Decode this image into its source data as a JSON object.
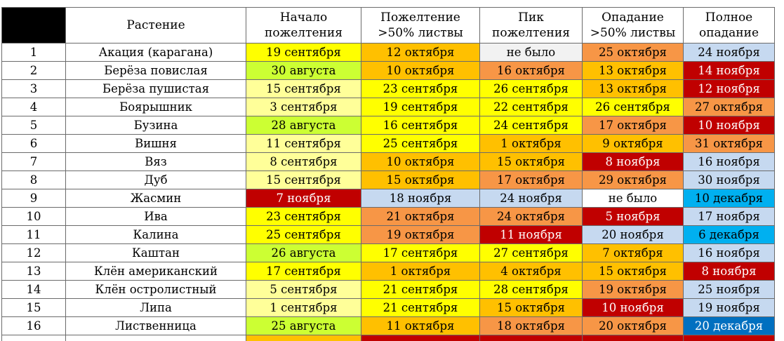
{
  "colors": {
    "light_yellow": "#ffff99",
    "yellow": "#ffff00",
    "yellow_green": "#ccff33",
    "light_orange": "#ffc000",
    "orange": "#f79646",
    "dark_red": "#c00000",
    "light_blue": "#c6d9f0",
    "sky_blue": "#00b0f0",
    "blue": "#0070c0",
    "light_gray": "#f2f2f2",
    "white": "#ffffff"
  },
  "table": {
    "headers": [
      {
        "lines": [
          ""
        ],
        "key": "corner"
      },
      {
        "lines": [
          "Растение"
        ],
        "key": "plant"
      },
      {
        "lines": [
          "Начало",
          "пожелтения"
        ],
        "key": "start"
      },
      {
        "lines": [
          "Пожелтение",
          ">50% листвы"
        ],
        "key": "over50"
      },
      {
        "lines": [
          "Пик",
          "пожелтения"
        ],
        "key": "peak"
      },
      {
        "lines": [
          "Опадание",
          ">50% листвы"
        ],
        "key": "fall50"
      },
      {
        "lines": [
          "Полное",
          "опадание"
        ],
        "key": "full"
      }
    ],
    "rows": [
      {
        "num": "1",
        "plant": "Акация (карагана)",
        "cells": [
          {
            "text": "19 сентября",
            "color": "yellow"
          },
          {
            "text": "12 октября",
            "color": "light_orange"
          },
          {
            "text": "не было",
            "color": "light_gray"
          },
          {
            "text": "25 октября",
            "color": "orange"
          },
          {
            "text": "24 ноября",
            "color": "light_blue"
          }
        ]
      },
      {
        "num": "2",
        "plant": "Берёза повислая",
        "cells": [
          {
            "text": "30 августа",
            "color": "yellow_green"
          },
          {
            "text": "10 октября",
            "color": "light_orange"
          },
          {
            "text": "16 октября",
            "color": "orange"
          },
          {
            "text": "13 октября",
            "color": "light_orange"
          },
          {
            "text": "14 ноября",
            "color": "dark_red"
          }
        ]
      },
      {
        "num": "3",
        "plant": "Берёза пушистая",
        "cells": [
          {
            "text": "15 сентября",
            "color": "light_yellow"
          },
          {
            "text": "23 сентября",
            "color": "yellow"
          },
          {
            "text": "26 сентября",
            "color": "yellow"
          },
          {
            "text": "13 октября",
            "color": "light_orange"
          },
          {
            "text": "12 ноября",
            "color": "dark_red"
          }
        ]
      },
      {
        "num": "4",
        "plant": "Боярышник",
        "cells": [
          {
            "text": "3 сентября",
            "color": "light_yellow"
          },
          {
            "text": "19 сентября",
            "color": "yellow"
          },
          {
            "text": "22 сентября",
            "color": "yellow"
          },
          {
            "text": "26 сентября",
            "color": "yellow"
          },
          {
            "text": "27 октября",
            "color": "orange"
          }
        ]
      },
      {
        "num": "5",
        "plant": "Бузина",
        "cells": [
          {
            "text": "28 августа",
            "color": "yellow_green"
          },
          {
            "text": "16 сентября",
            "color": "yellow"
          },
          {
            "text": "24 сентября",
            "color": "yellow"
          },
          {
            "text": "17 октября",
            "color": "orange"
          },
          {
            "text": "10 ноября",
            "color": "dark_red"
          }
        ]
      },
      {
        "num": "6",
        "plant": "Вишня",
        "cells": [
          {
            "text": "11 сентября",
            "color": "light_yellow"
          },
          {
            "text": "25 сентября",
            "color": "yellow"
          },
          {
            "text": "1 октября",
            "color": "light_orange"
          },
          {
            "text": "9 октября",
            "color": "light_orange"
          },
          {
            "text": "31 октября",
            "color": "orange"
          }
        ]
      },
      {
        "num": "7",
        "plant": "Вяз",
        "cells": [
          {
            "text": "8 сентября",
            "color": "light_yellow"
          },
          {
            "text": "10 октября",
            "color": "light_orange"
          },
          {
            "text": "15 октября",
            "color": "light_orange"
          },
          {
            "text": "8 ноября",
            "color": "dark_red"
          },
          {
            "text": "16 ноября",
            "color": "light_blue"
          }
        ]
      },
      {
        "num": "8",
        "plant": "Дуб",
        "cells": [
          {
            "text": "15 сентября",
            "color": "light_yellow"
          },
          {
            "text": "15 октября",
            "color": "light_orange"
          },
          {
            "text": "17 октября",
            "color": "orange"
          },
          {
            "text": "29 октября",
            "color": "orange"
          },
          {
            "text": "30 ноября",
            "color": "light_blue"
          }
        ]
      },
      {
        "num": "9",
        "plant": "Жасмин",
        "cells": [
          {
            "text": "7 ноября",
            "color": "dark_red"
          },
          {
            "text": "18 ноября",
            "color": "light_blue"
          },
          {
            "text": "24 ноября",
            "color": "light_blue"
          },
          {
            "text": "не было",
            "color": "white"
          },
          {
            "text": "10 декабря",
            "color": "sky_blue"
          }
        ]
      },
      {
        "num": "10",
        "plant": "Ива",
        "cells": [
          {
            "text": "23 сентября",
            "color": "yellow"
          },
          {
            "text": "21 октября",
            "color": "orange"
          },
          {
            "text": "24 октября",
            "color": "orange"
          },
          {
            "text": "5 ноября",
            "color": "dark_red"
          },
          {
            "text": "17 ноября",
            "color": "light_blue"
          }
        ]
      },
      {
        "num": "11",
        "plant": "Калина",
        "cells": [
          {
            "text": "25 сентября",
            "color": "yellow"
          },
          {
            "text": "19 октября",
            "color": "orange"
          },
          {
            "text": "11 ноября",
            "color": "dark_red"
          },
          {
            "text": "20 ноября",
            "color": "light_blue"
          },
          {
            "text": "6 декабря",
            "color": "sky_blue"
          }
        ]
      },
      {
        "num": "12",
        "plant": "Каштан",
        "cells": [
          {
            "text": "26 августа",
            "color": "yellow_green"
          },
          {
            "text": "17 сентября",
            "color": "yellow"
          },
          {
            "text": "27 сентября",
            "color": "yellow"
          },
          {
            "text": "7 октября",
            "color": "light_orange"
          },
          {
            "text": "16 ноября",
            "color": "light_blue"
          }
        ]
      },
      {
        "num": "13",
        "plant": "Клён американский",
        "cells": [
          {
            "text": "17 сентября",
            "color": "yellow"
          },
          {
            "text": "1 октября",
            "color": "light_orange"
          },
          {
            "text": "4 октября",
            "color": "light_orange"
          },
          {
            "text": "15 октября",
            "color": "light_orange"
          },
          {
            "text": "8 ноября",
            "color": "dark_red"
          }
        ]
      },
      {
        "num": "14",
        "plant": "Клён остролистный",
        "cells": [
          {
            "text": "5 сентября",
            "color": "light_yellow"
          },
          {
            "text": "21 сентября",
            "color": "yellow"
          },
          {
            "text": "28 сентября",
            "color": "yellow"
          },
          {
            "text": "19 октября",
            "color": "orange"
          },
          {
            "text": "25 ноября",
            "color": "light_blue"
          }
        ]
      },
      {
        "num": "15",
        "plant": "Липа",
        "cells": [
          {
            "text": "1 сентября",
            "color": "light_yellow"
          },
          {
            "text": "21 сентября",
            "color": "yellow"
          },
          {
            "text": "15 октября",
            "color": "light_orange"
          },
          {
            "text": "10 ноября",
            "color": "dark_red"
          },
          {
            "text": "19 ноября",
            "color": "light_blue"
          }
        ]
      },
      {
        "num": "16",
        "plant": "Лиственница",
        "cells": [
          {
            "text": "25 августа",
            "color": "yellow_green"
          },
          {
            "text": "11 октября",
            "color": "light_orange"
          },
          {
            "text": "18 октября",
            "color": "orange"
          },
          {
            "text": "20 октября",
            "color": "orange"
          },
          {
            "text": "20 декабря",
            "color": "blue"
          }
        ]
      }
    ],
    "partial_row_colors": [
      "white",
      "white",
      "light_orange",
      "dark_red",
      "dark_red",
      "dark_red",
      "dark_red"
    ]
  }
}
